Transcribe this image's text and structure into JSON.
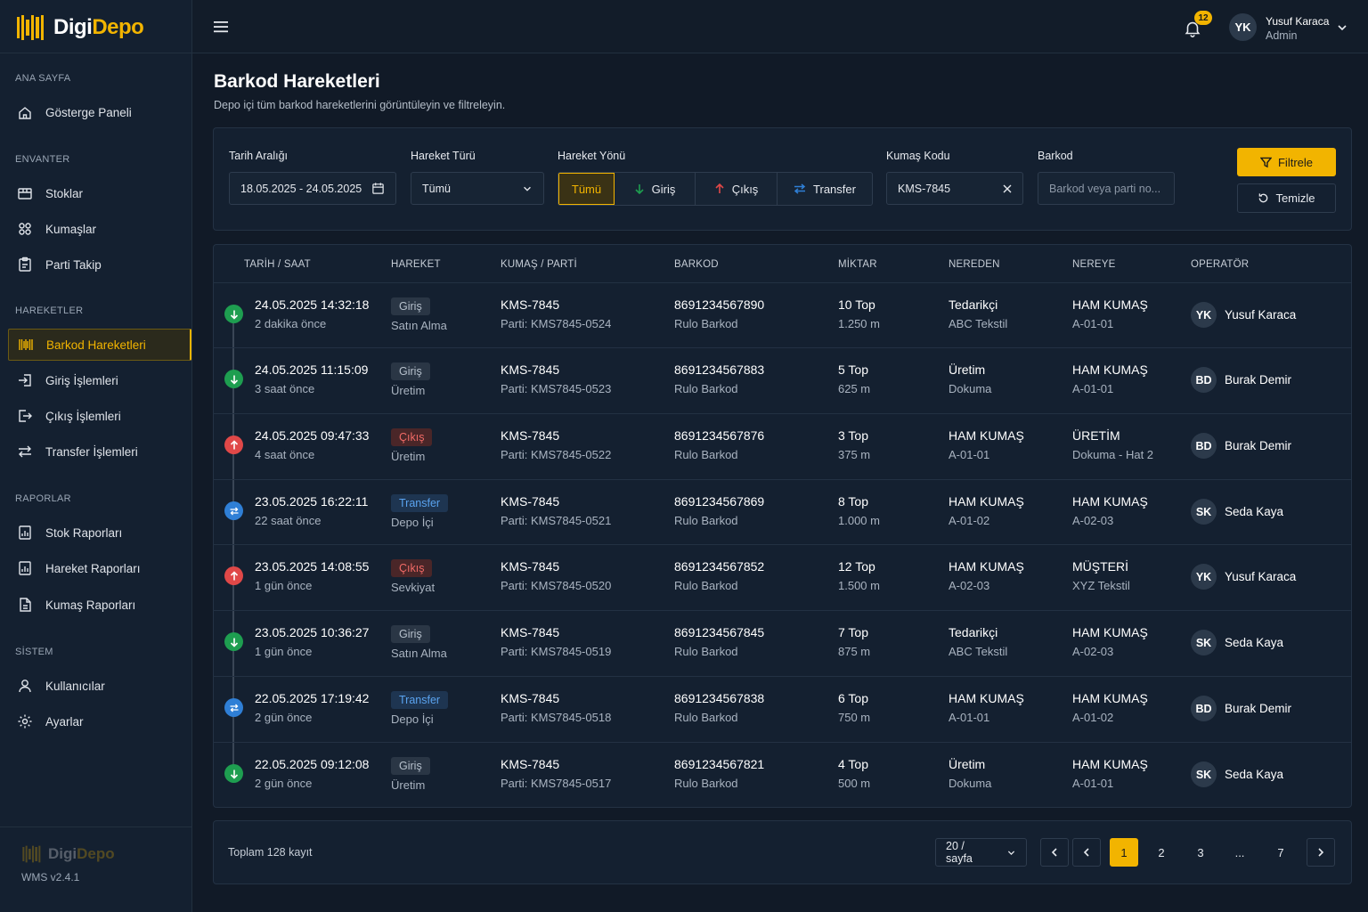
{
  "app": {
    "logo_part1": "Digi",
    "logo_part2": "Depo",
    "version": "WMS v2.4.1"
  },
  "sidebar": {
    "sections": [
      {
        "title": "ANA SAYFA",
        "items": [
          {
            "label": "Gösterge Paneli",
            "icon": "home-icon"
          }
        ]
      },
      {
        "title": "ENVANTER",
        "items": [
          {
            "label": "Stoklar",
            "icon": "boxes-icon"
          },
          {
            "label": "Kumaşlar",
            "icon": "fabric-icon"
          },
          {
            "label": "Parti Takip",
            "icon": "clipboard-icon"
          }
        ]
      },
      {
        "title": "HAREKETLER",
        "items": [
          {
            "label": "Barkod Hareketleri",
            "icon": "barcode-icon",
            "active": true
          },
          {
            "label": "Giriş İşlemleri",
            "icon": "login-icon"
          },
          {
            "label": "Çıkış İşlemleri",
            "icon": "logout-icon"
          },
          {
            "label": "Transfer İşlemleri",
            "icon": "transfer-icon"
          }
        ]
      },
      {
        "title": "RAPORLAR",
        "items": [
          {
            "label": "Stok Raporları",
            "icon": "report-icon"
          },
          {
            "label": "Hareket Raporları",
            "icon": "report-icon"
          },
          {
            "label": "Kumaş Raporları",
            "icon": "file-icon"
          }
        ]
      },
      {
        "title": "SİSTEM",
        "items": [
          {
            "label": "Kullanıcılar",
            "icon": "user-icon"
          },
          {
            "label": "Ayarlar",
            "icon": "gear-icon"
          }
        ]
      }
    ]
  },
  "topbar": {
    "notification_count": "12",
    "user_initials": "YK",
    "user_name": "Yusuf Karaca",
    "user_role": "Admin"
  },
  "page": {
    "title": "Barkod Hareketleri",
    "subtitle": "Depo içi tüm barkod hareketlerini görüntüleyin ve filtreleyin."
  },
  "filters": {
    "date_label": "Tarih Aralığı",
    "date_value": "18.05.2025 - 24.05.2025",
    "type_label": "Hareket Türü",
    "type_value": "Tümü",
    "direction_label": "Hareket Yönü",
    "direction_options": [
      "Tümü",
      "Giriş",
      "Çıkış",
      "Transfer"
    ],
    "direction_selected": "Tümü",
    "fabric_label": "Kumaş Kodu",
    "fabric_value": "KMS-7845",
    "barcode_label": "Barkod",
    "barcode_placeholder": "Barkod veya parti no...",
    "filter_button": "Filtrele",
    "clear_button": "Temizle"
  },
  "table": {
    "headers": [
      "TARİH / SAAT",
      "HAREKET",
      "KUMAŞ / PARTİ",
      "BARKOD",
      "MİKTAR",
      "NEREDEN",
      "NEREYE",
      "OPERATÖR"
    ],
    "rows": [
      {
        "kind": "in",
        "datetime": "24.05.2025 14:32:18",
        "ago": "2 dakika önce",
        "move": "Giriş",
        "move_sub": "Satın Alma",
        "fabric": "KMS-7845",
        "lot": "Parti: KMS7845-0524",
        "barcode": "8691234567890",
        "barcode_type": "Rulo Barkod",
        "qty": "10 Top",
        "length": "1.250 m",
        "from": "Tedarikçi",
        "from_sub": "ABC Tekstil",
        "to": "HAM KUMAŞ",
        "to_sub": "A-01-01",
        "op_initials": "YK",
        "operator": "Yusuf Karaca"
      },
      {
        "kind": "in",
        "datetime": "24.05.2025 11:15:09",
        "ago": "3 saat önce",
        "move": "Giriş",
        "move_sub": "Üretim",
        "fabric": "KMS-7845",
        "lot": "Parti: KMS7845-0523",
        "barcode": "8691234567883",
        "barcode_type": "Rulo Barkod",
        "qty": "5 Top",
        "length": "625 m",
        "from": "Üretim",
        "from_sub": "Dokuma",
        "to": "HAM KUMAŞ",
        "to_sub": "A-01-01",
        "op_initials": "BD",
        "operator": "Burak Demir"
      },
      {
        "kind": "out",
        "datetime": "24.05.2025 09:47:33",
        "ago": "4 saat önce",
        "move": "Çıkış",
        "move_sub": "Üretim",
        "fabric": "KMS-7845",
        "lot": "Parti: KMS7845-0522",
        "barcode": "8691234567876",
        "barcode_type": "Rulo Barkod",
        "qty": "3 Top",
        "length": "375 m",
        "from": "HAM KUMAŞ",
        "from_sub": "A-01-01",
        "to": "ÜRETİM",
        "to_sub": "Dokuma - Hat 2",
        "op_initials": "BD",
        "operator": "Burak Demir"
      },
      {
        "kind": "tr",
        "datetime": "23.05.2025 16:22:11",
        "ago": "22 saat önce",
        "move": "Transfer",
        "move_sub": "Depo İçi",
        "fabric": "KMS-7845",
        "lot": "Parti: KMS7845-0521",
        "barcode": "8691234567869",
        "barcode_type": "Rulo Barkod",
        "qty": "8 Top",
        "length": "1.000 m",
        "from": "HAM KUMAŞ",
        "from_sub": "A-01-02",
        "to": "HAM KUMAŞ",
        "to_sub": "A-02-03",
        "op_initials": "SK",
        "operator": "Seda Kaya"
      },
      {
        "kind": "out",
        "datetime": "23.05.2025 14:08:55",
        "ago": "1 gün önce",
        "move": "Çıkış",
        "move_sub": "Sevkiyat",
        "fabric": "KMS-7845",
        "lot": "Parti: KMS7845-0520",
        "barcode": "8691234567852",
        "barcode_type": "Rulo Barkod",
        "qty": "12 Top",
        "length": "1.500 m",
        "from": "HAM KUMAŞ",
        "from_sub": "A-02-03",
        "to": "MÜŞTERİ",
        "to_sub": "XYZ Tekstil",
        "op_initials": "YK",
        "operator": "Yusuf Karaca"
      },
      {
        "kind": "in",
        "datetime": "23.05.2025 10:36:27",
        "ago": "1 gün önce",
        "move": "Giriş",
        "move_sub": "Satın Alma",
        "fabric": "KMS-7845",
        "lot": "Parti: KMS7845-0519",
        "barcode": "8691234567845",
        "barcode_type": "Rulo Barkod",
        "qty": "7 Top",
        "length": "875 m",
        "from": "Tedarikçi",
        "from_sub": "ABC Tekstil",
        "to": "HAM KUMAŞ",
        "to_sub": "A-02-03",
        "op_initials": "SK",
        "operator": "Seda Kaya"
      },
      {
        "kind": "tr",
        "datetime": "22.05.2025 17:19:42",
        "ago": "2 gün önce",
        "move": "Transfer",
        "move_sub": "Depo İçi",
        "fabric": "KMS-7845",
        "lot": "Parti: KMS7845-0518",
        "barcode": "8691234567838",
        "barcode_type": "Rulo Barkod",
        "qty": "6 Top",
        "length": "750 m",
        "from": "HAM KUMAŞ",
        "from_sub": "A-01-01",
        "to": "HAM KUMAŞ",
        "to_sub": "A-01-02",
        "op_initials": "BD",
        "operator": "Burak Demir"
      },
      {
        "kind": "in",
        "datetime": "22.05.2025 09:12:08",
        "ago": "2 gün önce",
        "move": "Giriş",
        "move_sub": "Üretim",
        "fabric": "KMS-7845",
        "lot": "Parti: KMS7845-0517",
        "barcode": "8691234567821",
        "barcode_type": "Rulo Barkod",
        "qty": "4 Top",
        "length": "500 m",
        "from": "Üretim",
        "from_sub": "Dokuma",
        "to": "HAM KUMAŞ",
        "to_sub": "A-01-01",
        "op_initials": "SK",
        "operator": "Seda Kaya"
      }
    ]
  },
  "pagination": {
    "total_label": "Toplam",
    "total_count": "128",
    "total_suffix": "kayıt",
    "per_page": "20 / sayfa",
    "pages": [
      "1",
      "2",
      "3",
      "...",
      "7"
    ],
    "current": "1"
  },
  "colors": {
    "accent": "#f2b400",
    "in": "#1e9e50",
    "out": "#e04848",
    "transfer": "#2f7fd6",
    "background": "#111a27",
    "panel": "#142030"
  }
}
